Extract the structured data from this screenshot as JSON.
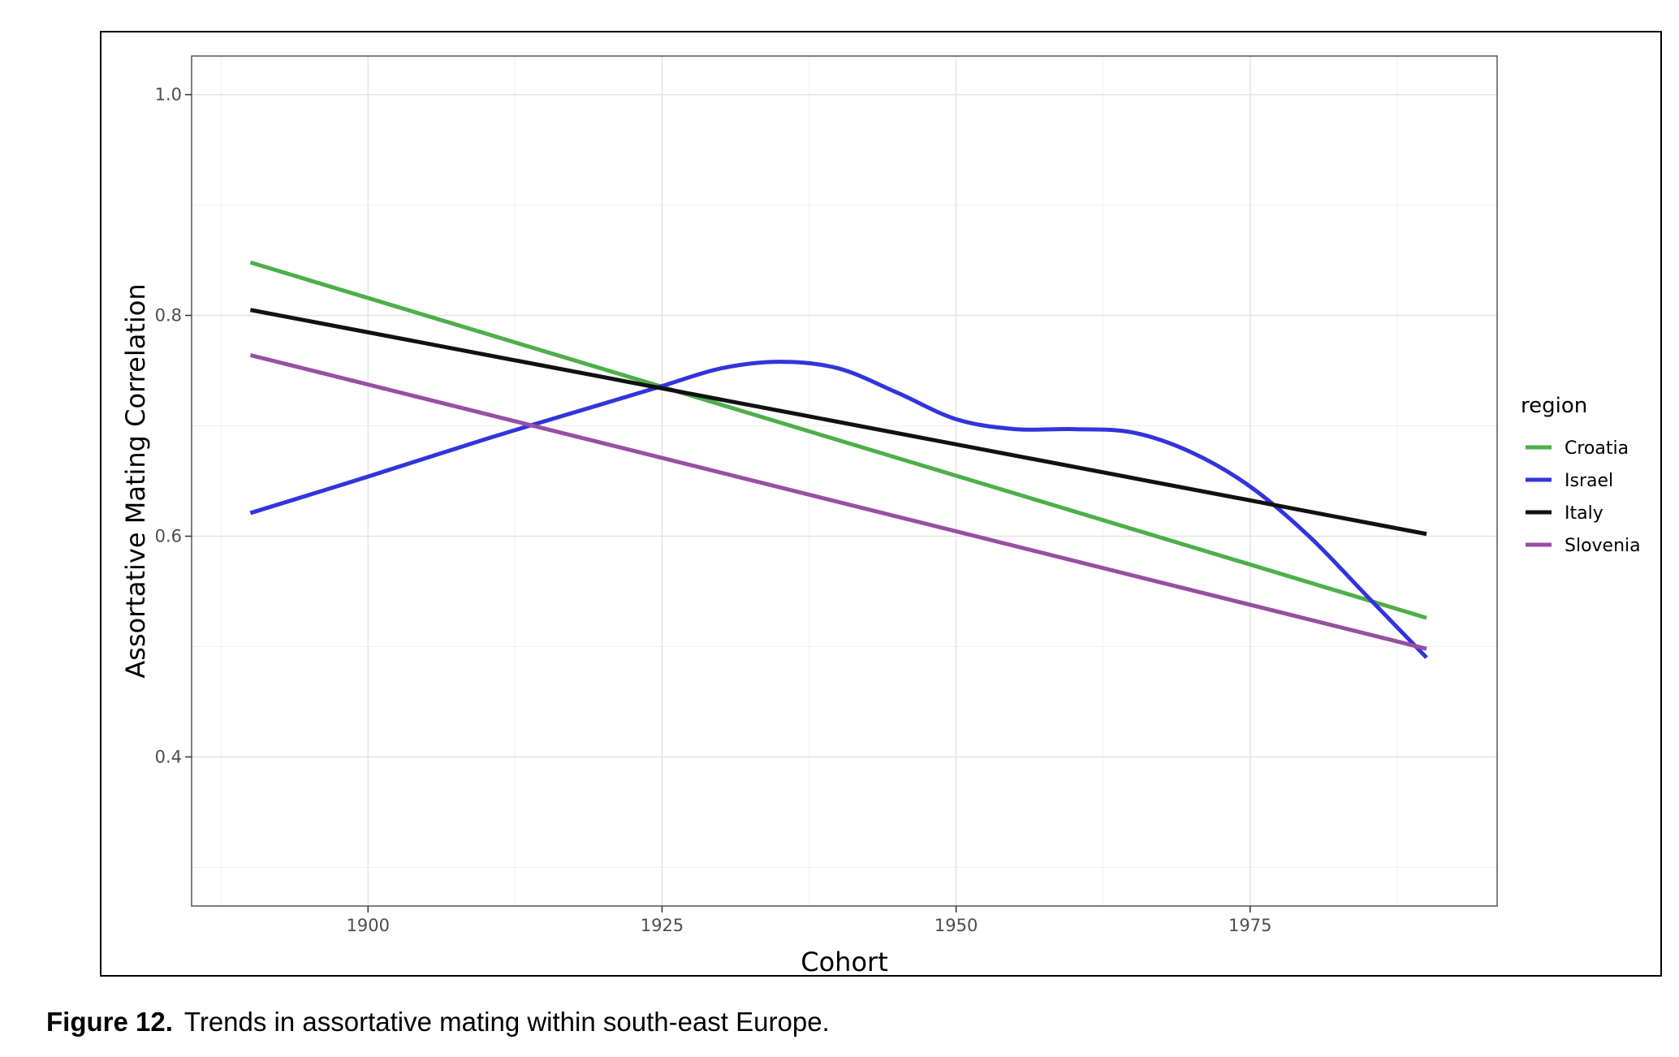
{
  "caption": {
    "label": "Figure 12.",
    "text": "Trends in assortative mating within south-east Europe."
  },
  "chart_data": {
    "type": "line",
    "title": "",
    "xlabel": "Cohort",
    "ylabel": "Assortative Mating Correlation",
    "xlim": [
      1885,
      1996
    ],
    "ylim": [
      0.265,
      1.035
    ],
    "x_ticks": [
      1900,
      1925,
      1950,
      1975
    ],
    "x_tick_labels": [
      "1900",
      "1925",
      "1950",
      "1975"
    ],
    "y_ticks": [
      0.4,
      0.6,
      0.8,
      1.0
    ],
    "y_tick_labels": [
      "0.4",
      "0.6",
      "0.8",
      "1.0"
    ],
    "grid": true,
    "legend": {
      "title": "region",
      "position": "right"
    },
    "series": [
      {
        "name": "Croatia",
        "color": "#4daf4a",
        "x": [
          1890,
          1990
        ],
        "y": [
          0.848,
          0.526
        ]
      },
      {
        "name": "Israel",
        "color": "#3333dd",
        "x": [
          1890,
          1900,
          1910,
          1920,
          1925,
          1930,
          1935,
          1940,
          1945,
          1950,
          1955,
          1960,
          1965,
          1970,
          1975,
          1980,
          1985,
          1990
        ],
        "y": [
          0.621,
          0.654,
          0.688,
          0.72,
          0.736,
          0.752,
          0.758,
          0.752,
          0.73,
          0.706,
          0.697,
          0.697,
          0.694,
          0.676,
          0.645,
          0.6,
          0.545,
          0.49
        ]
      },
      {
        "name": "Italy",
        "color": "#111111",
        "x": [
          1890,
          1990
        ],
        "y": [
          0.805,
          0.602
        ]
      },
      {
        "name": "Slovenia",
        "color": "#984ea3",
        "x": [
          1890,
          1990
        ],
        "y": [
          0.764,
          0.498
        ]
      }
    ]
  }
}
